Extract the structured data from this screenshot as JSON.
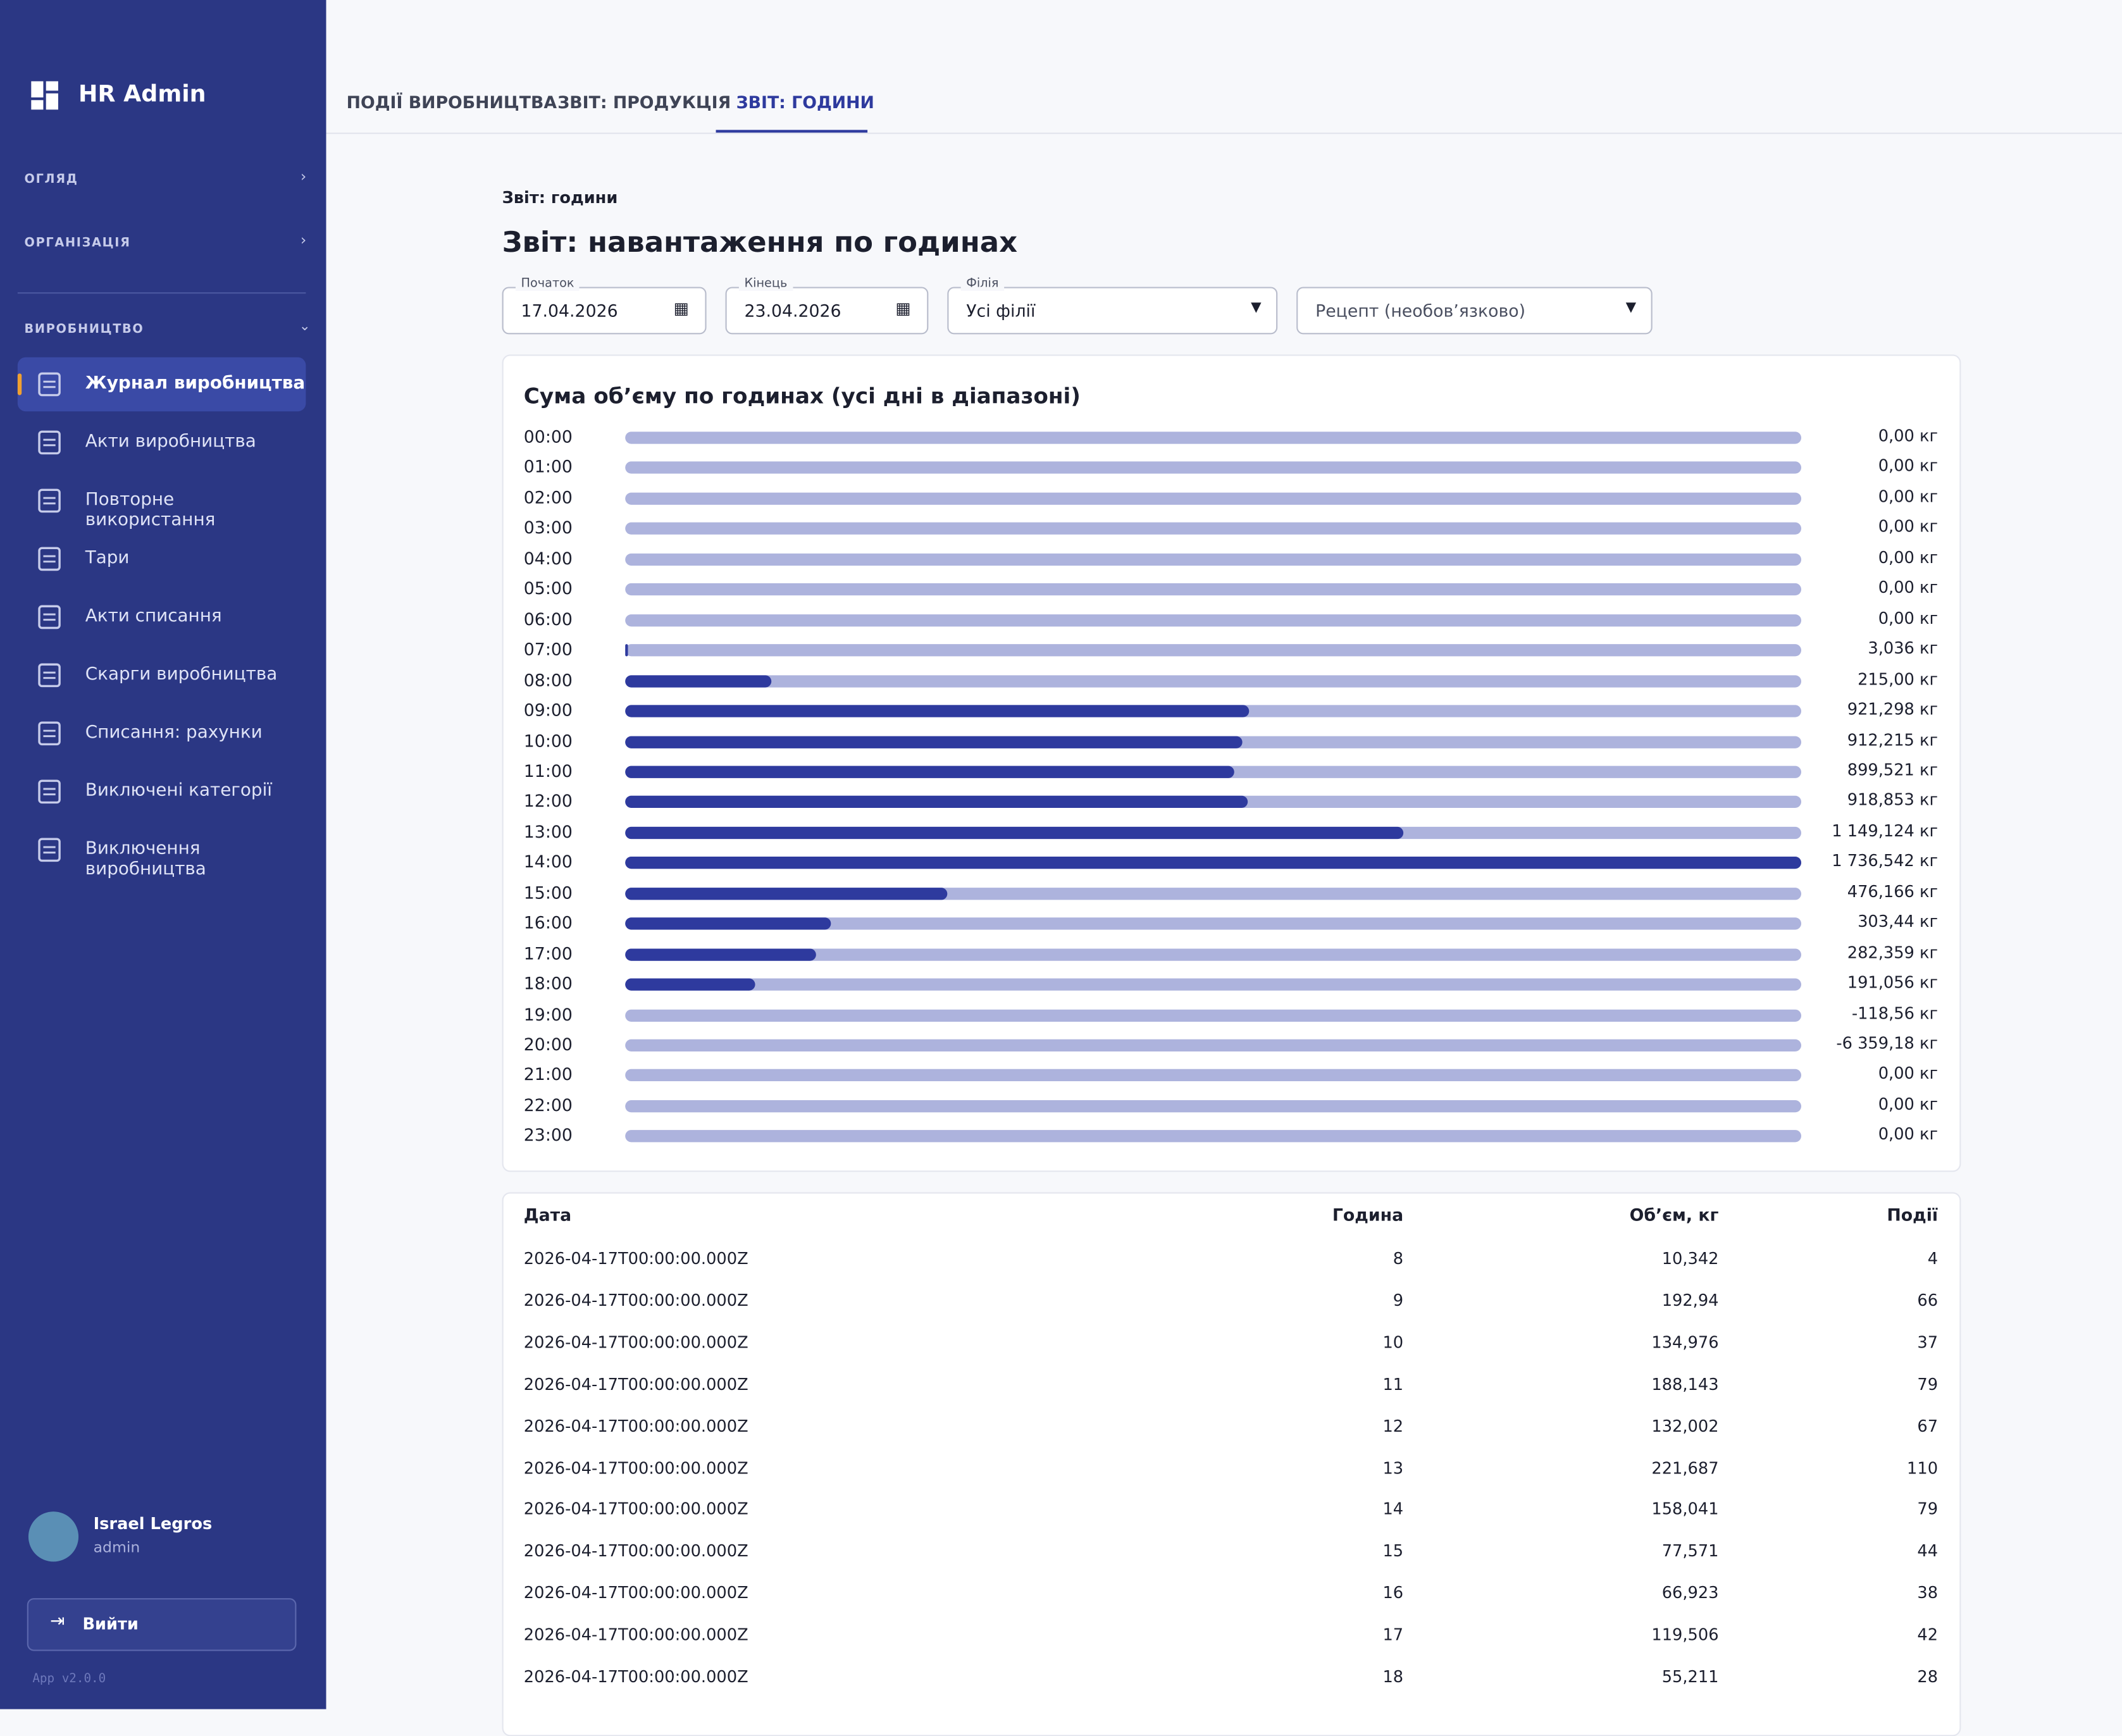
{
  "sidebar": {
    "brand": "HR Admin",
    "sections": [
      "ОГЛЯД",
      "ОРГАНІЗАЦІЯ",
      "ВИРОБНИЦТВО"
    ],
    "nav": [
      "Журнал виробництва",
      "Акти виробництва",
      "Повторне використання",
      "Тари",
      "Акти списання",
      "Скарги виробництва",
      "Списання: рахунки",
      "Виключені категорії",
      "Виключення виробництва"
    ],
    "user": {
      "name": "Israel Legros",
      "role": "admin"
    },
    "logout": "Вийти",
    "version": "App v2.0.0"
  },
  "tabs": [
    "ПОДІЇ ВИРОБНИЦТВА",
    "ЗВІТ: ПРОДУКЦІЯ",
    "ЗВІТ: ГОДИНИ"
  ],
  "breadcrumb": "Звіт: години",
  "title": "Звіт: навантаження по годинах",
  "filters": {
    "start": {
      "label": "Початок",
      "value": "17.04.2026"
    },
    "end": {
      "label": "Кінець",
      "value": "23.04.2026"
    },
    "branch": {
      "label": "Філія",
      "value": "Усі філії"
    },
    "recipe": {
      "placeholder": "Рецепт (необов’язково)"
    }
  },
  "hourly": {
    "title": "Сума об’єму по годинах (усі дні в діапазоні)",
    "hours": [
      "00:00",
      "01:00",
      "02:00",
      "03:00",
      "04:00",
      "05:00",
      "06:00",
      "07:00",
      "08:00",
      "09:00",
      "10:00",
      "11:00",
      "12:00",
      "13:00",
      "14:00",
      "15:00",
      "16:00",
      "17:00",
      "18:00",
      "19:00",
      "20:00",
      "21:00",
      "22:00",
      "23:00"
    ],
    "values": [
      0,
      0,
      0,
      0,
      0,
      0,
      0,
      3.036,
      215,
      921.298,
      912.215,
      899.521,
      918.853,
      1149.124,
      1736.542,
      476.166,
      303.44,
      282.359,
      191.056,
      -118.56,
      -6359.18,
      0,
      0,
      0
    ],
    "value_labels": [
      "0,00 кг",
      "0,00 кг",
      "0,00 кг",
      "0,00 кг",
      "0,00 кг",
      "0,00 кг",
      "0,00 кг",
      "3,036 кг",
      "215,00 кг",
      "921,298 кг",
      "912,215 кг",
      "899,521 кг",
      "918,853 кг",
      "1 149,124 кг",
      "1 736,542 кг",
      "476,166 кг",
      "303,44 кг",
      "282,359 кг",
      "191,056 кг",
      "-118,56 кг",
      "-6 359,18 кг",
      "0,00 кг",
      "0,00 кг",
      "0,00 кг"
    ]
  },
  "table": {
    "columns": [
      "Дата",
      "Година",
      "Об’єм, кг",
      "Події"
    ],
    "rows": [
      [
        "2026-04-17T00:00:00.000Z",
        "8",
        "10,342",
        "4"
      ],
      [
        "2026-04-17T00:00:00.000Z",
        "9",
        "192,94",
        "66"
      ],
      [
        "2026-04-17T00:00:00.000Z",
        "10",
        "134,976",
        "37"
      ],
      [
        "2026-04-17T00:00:00.000Z",
        "11",
        "188,143",
        "79"
      ],
      [
        "2026-04-17T00:00:00.000Z",
        "12",
        "132,002",
        "67"
      ],
      [
        "2026-04-17T00:00:00.000Z",
        "13",
        "221,687",
        "110"
      ],
      [
        "2026-04-17T00:00:00.000Z",
        "14",
        "158,041",
        "79"
      ],
      [
        "2026-04-17T00:00:00.000Z",
        "15",
        "77,571",
        "44"
      ],
      [
        "2026-04-17T00:00:00.000Z",
        "16",
        "66,923",
        "38"
      ],
      [
        "2026-04-17T00:00:00.000Z",
        "17",
        "119,506",
        "42"
      ],
      [
        "2026-04-17T00:00:00.000Z",
        "18",
        "55,211",
        "28"
      ]
    ]
  }
}
